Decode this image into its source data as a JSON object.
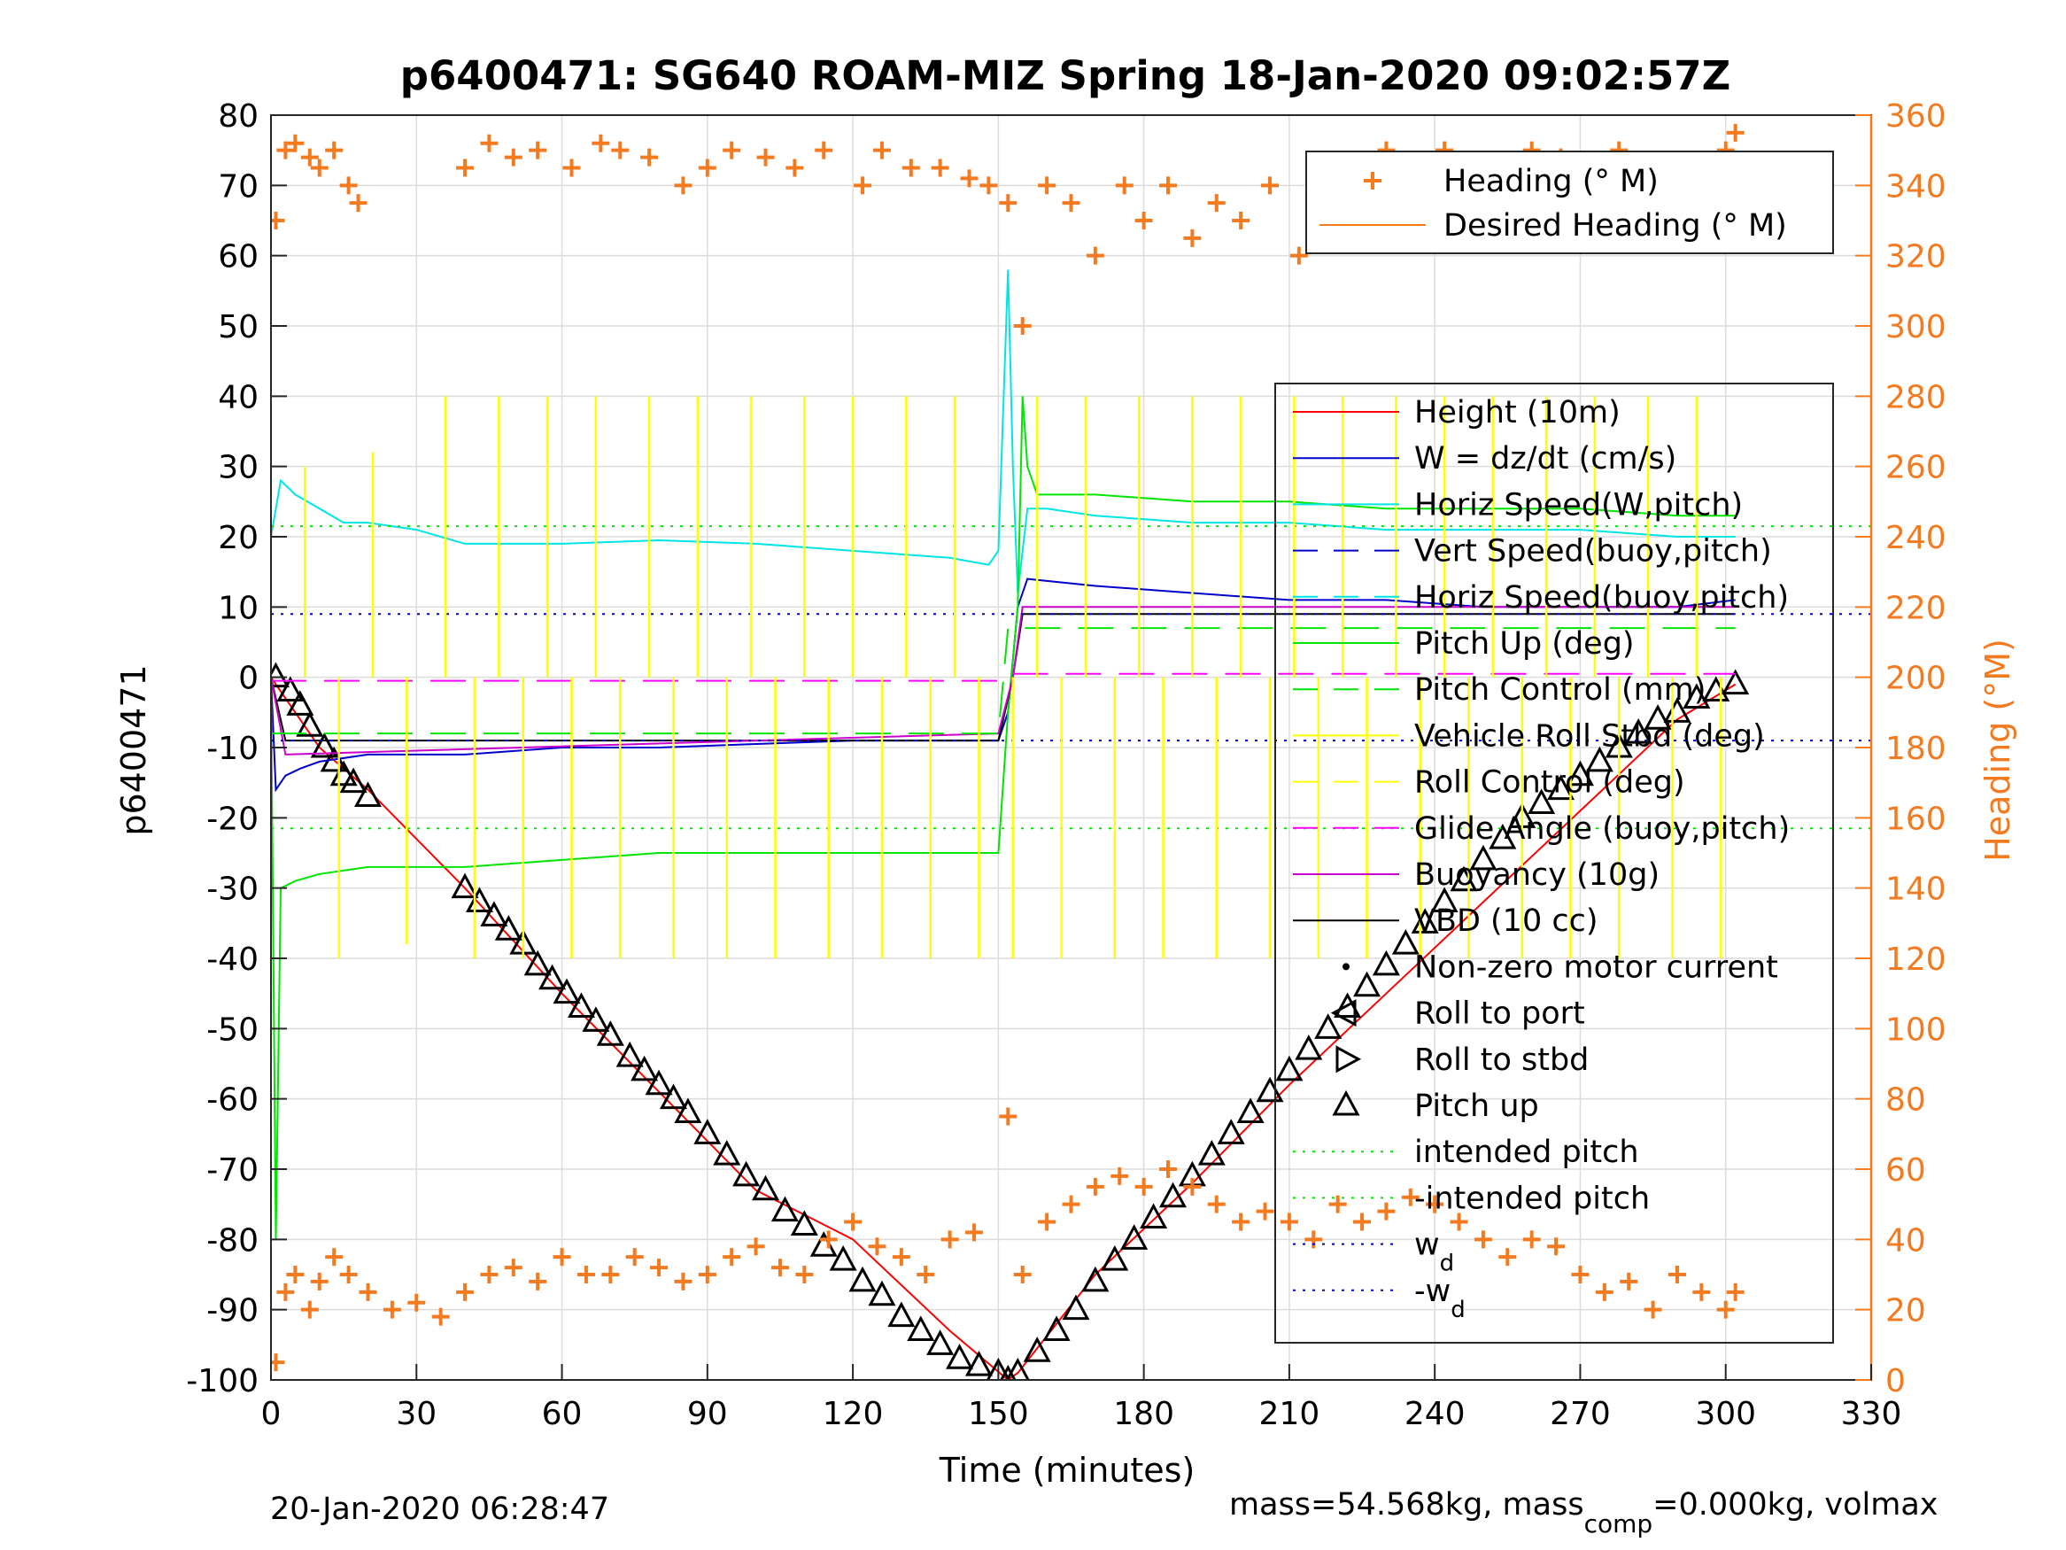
{
  "chart_data": {
    "type": "line",
    "title": "p6400471: SG640 ROAM-MIZ Spring 18-Jan-2020 09:02:57Z",
    "xlabel": "Time (minutes)",
    "ylabel_left": "p6400471",
    "ylabel_right": "Heading (°M)",
    "xlim": [
      0,
      330
    ],
    "ylim_left": [
      -100,
      80
    ],
    "ylim_right": [
      0,
      360
    ],
    "xticks": [
      0,
      30,
      60,
      90,
      120,
      150,
      180,
      210,
      240,
      270,
      300,
      330
    ],
    "yticks_left": [
      80,
      70,
      60,
      50,
      40,
      30,
      20,
      10,
      0,
      -10,
      -20,
      -30,
      -40,
      -50,
      -60,
      -70,
      -80,
      -90,
      -100
    ],
    "yticks_right": [
      360,
      340,
      320,
      300,
      280,
      260,
      240,
      220,
      200,
      180,
      160,
      140,
      120,
      100,
      80,
      60,
      40,
      20,
      0
    ],
    "grid": true,
    "footer_left": "20-Jan-2020 06:28:47",
    "footer_right": "mass=54.568kg, mass",
    "footer_right_sub": "comp",
    "footer_right_tail": "=0.000kg, volmax",
    "legend_heading": [
      {
        "label": "Heading (° M)",
        "color": "#f47a20",
        "style": "marker-plus"
      },
      {
        "label": "Desired Heading (° M)",
        "color": "#f47a20",
        "style": "solid"
      }
    ],
    "legend_main": [
      {
        "label": "Height (10m)",
        "color": "#ff0000",
        "style": "solid"
      },
      {
        "label": "W = dz/dt (cm/s)",
        "color": "#0000cc",
        "style": "solid"
      },
      {
        "label": "Horiz Speed(W,pitch)",
        "color": "#00e5e5",
        "style": "solid"
      },
      {
        "label": "Vert Speed(buoy,pitch)",
        "color": "#0000cc",
        "style": "dashed"
      },
      {
        "label": "Horiz Speed(buoy,pitch)",
        "color": "#00e5e5",
        "style": "dashed"
      },
      {
        "label": "Pitch Up (deg)",
        "color": "#00e600",
        "style": "solid"
      },
      {
        "label": "Pitch Control (mm)",
        "color": "#00e600",
        "style": "dashed"
      },
      {
        "label": "Vehicle Roll Stbd (deg)",
        "color": "#ffff00",
        "style": "solid"
      },
      {
        "label": "Roll Control (deg)",
        "color": "#ffff00",
        "style": "dashed"
      },
      {
        "label": "Glide Angle (buoy,pitch)",
        "color": "#ff00ff",
        "style": "dashed"
      },
      {
        "label": "Buoyancy (10g)",
        "color": "#cc00cc",
        "style": "solid"
      },
      {
        "label": "VBD (10 cc)",
        "color": "#000000",
        "style": "solid"
      },
      {
        "label": "Non-zero motor current",
        "color": "#000000",
        "style": "dot"
      },
      {
        "label": "Roll to port",
        "color": "#000000",
        "style": "tri-left"
      },
      {
        "label": "Roll to stbd",
        "color": "#000000",
        "style": "tri-right"
      },
      {
        "label": "Pitch up",
        "color": "#000000",
        "style": "tri-up"
      },
      {
        "label": "intended pitch",
        "color": "#00e600",
        "style": "dotted"
      },
      {
        "label": "-intended pitch",
        "color": "#00e600",
        "style": "dotted"
      },
      {
        "label": "w",
        "sub": "d",
        "color": "#0000cc",
        "style": "dotted"
      },
      {
        "label": "-w",
        "sub": "d",
        "color": "#0000cc",
        "style": "dotted"
      }
    ],
    "series": [
      {
        "name": "Height (10m)",
        "axis": "left",
        "color": "#ff0000",
        "x": [
          0,
          5,
          10,
          15,
          20,
          40,
          60,
          80,
          100,
          120,
          140,
          152,
          154,
          170,
          190,
          210,
          230,
          250,
          270,
          290,
          302
        ],
        "y": [
          0,
          -5,
          -10,
          -13,
          -16,
          -30,
          -45,
          -59,
          -73,
          -80,
          -93,
          -100,
          -99,
          -85,
          -72,
          -58,
          -45,
          -32,
          -19,
          -6,
          -1
        ]
      },
      {
        "name": "Pitch up markers",
        "axis": "left",
        "color": "#000000",
        "x": [
          1,
          4,
          6,
          8,
          11,
          13,
          15,
          17,
          20,
          40,
          43,
          46,
          49,
          52,
          55,
          58,
          61,
          64,
          67,
          70,
          74,
          77,
          80,
          83,
          86,
          90,
          94,
          98,
          102,
          106,
          110,
          114,
          118,
          122,
          126,
          130,
          134,
          138,
          142,
          146,
          150,
          152,
          154,
          158,
          162,
          166,
          170,
          174,
          178,
          182,
          186,
          190,
          194,
          198,
          202,
          206,
          210,
          214,
          218,
          222,
          226,
          230,
          234,
          238,
          242,
          246,
          250,
          254,
          258,
          262,
          266,
          270,
          274,
          278,
          282,
          286,
          290,
          294,
          298,
          302
        ],
        "y": [
          0,
          -2,
          -4,
          -7,
          -10,
          -12,
          -14,
          -15,
          -17,
          -30,
          -32,
          -34,
          -36,
          -38,
          -41,
          -43,
          -45,
          -47,
          -49,
          -51,
          -54,
          -56,
          -58,
          -60,
          -62,
          -65,
          -68,
          -71,
          -73,
          -76,
          -78,
          -81,
          -83,
          -86,
          -88,
          -91,
          -93,
          -95,
          -97,
          -98,
          -99,
          -100,
          -99,
          -96,
          -93,
          -90,
          -86,
          -83,
          -80,
          -77,
          -74,
          -71,
          -68,
          -65,
          -62,
          -59,
          -56,
          -53,
          -50,
          -47,
          -44,
          -41,
          -38,
          -35,
          -32,
          -29,
          -26,
          -23,
          -20,
          -18,
          -16,
          -14,
          -12,
          -10,
          -8,
          -6,
          -5,
          -3,
          -2,
          -1
        ]
      },
      {
        "name": "W = dz/dt (cm/s)",
        "axis": "left",
        "color": "#0000cc",
        "x": [
          0,
          1,
          3,
          6,
          10,
          20,
          40,
          60,
          80,
          100,
          120,
          140,
          150,
          152,
          154,
          156,
          170,
          190,
          210,
          230,
          250,
          270,
          290,
          302
        ],
        "y": [
          0,
          -16,
          -14,
          -13,
          -12,
          -11,
          -11,
          -10,
          -10,
          -9.5,
          -9,
          -9,
          -9,
          -5,
          10,
          14,
          13,
          12,
          11,
          11,
          10,
          10,
          10,
          11
        ]
      },
      {
        "name": "Horiz Speed(W,pitch)",
        "axis": "left",
        "color": "#00e5e5",
        "x": [
          0,
          2,
          5,
          10,
          15,
          20,
          30,
          40,
          60,
          80,
          100,
          120,
          140,
          148,
          150,
          152,
          153,
          154,
          156,
          160,
          170,
          190,
          210,
          230,
          250,
          270,
          290,
          302
        ],
        "y": [
          20,
          28,
          26,
          24,
          22,
          22,
          21,
          19,
          19,
          19.5,
          19,
          18,
          17,
          16,
          18,
          58,
          30,
          12,
          24,
          24,
          23,
          22,
          22,
          21,
          21,
          21,
          20,
          20
        ]
      },
      {
        "name": "Pitch Up (deg)",
        "axis": "left",
        "color": "#00e600",
        "x": [
          0,
          1,
          2,
          5,
          10,
          20,
          40,
          60,
          80,
          100,
          120,
          140,
          150,
          152,
          154,
          155,
          156,
          158,
          170,
          190,
          210,
          230,
          250,
          270,
          290,
          302
        ],
        "y": [
          0,
          -80,
          -30,
          -29,
          -28,
          -27,
          -27,
          -26,
          -25,
          -25,
          -25,
          -25,
          -25,
          -5,
          10,
          40,
          30,
          26,
          26,
          25,
          25,
          24,
          24,
          24,
          23,
          23
        ]
      },
      {
        "name": "VBD (10 cc)",
        "axis": "left",
        "color": "#000000",
        "x": [
          0,
          3,
          150,
          153,
          155,
          302
        ],
        "y": [
          0,
          -9,
          -9,
          0,
          9,
          9
        ]
      },
      {
        "name": "Buoyancy (10g)",
        "axis": "left",
        "color": "#cc00cc",
        "x": [
          0,
          3,
          150,
          153,
          155,
          302
        ],
        "y": [
          0,
          -11,
          -8,
          0,
          10,
          10
        ]
      },
      {
        "name": "Glide Angle (buoy,pitch)",
        "axis": "left",
        "color": "#ff00ff",
        "x": [
          0,
          150,
          152,
          302
        ],
        "y": [
          -0.5,
          -0.5,
          0.5,
          0.5
        ]
      },
      {
        "name": "Pitch Control (mm)",
        "axis": "left",
        "color": "#00e600",
        "x": [
          0,
          150,
          152,
          302
        ],
        "y": [
          -8,
          -8,
          7,
          7
        ]
      },
      {
        "name": "intended pitch",
        "axis": "left",
        "color": "#00e600",
        "x": [
          0,
          330
        ],
        "y": [
          21.5,
          21.5
        ]
      },
      {
        "name": "-intended pitch",
        "axis": "left",
        "color": "#00e600",
        "x": [
          0,
          330
        ],
        "y": [
          -21.5,
          -21.5
        ]
      },
      {
        "name": "w_d",
        "axis": "left",
        "color": "#0000cc",
        "x": [
          0,
          330
        ],
        "y": [
          9,
          9
        ]
      },
      {
        "name": "-w_d",
        "axis": "left",
        "color": "#0000cc",
        "x": [
          0,
          330
        ],
        "y": [
          -9,
          -9
        ]
      },
      {
        "name": "Vehicle Roll Stbd (deg) spikes",
        "axis": "left",
        "color": "#ffff00",
        "x": [
          7,
          14,
          21,
          28,
          36,
          42,
          47,
          52,
          57,
          62,
          67,
          72,
          78,
          83,
          88,
          94,
          99,
          104,
          110,
          115,
          120,
          126,
          131,
          136,
          141,
          146,
          153,
          158,
          163,
          168,
          174,
          179,
          184,
          190,
          195,
          200,
          206,
          211,
          216,
          221,
          226,
          232,
          237,
          242,
          247,
          252,
          258,
          263,
          268,
          273,
          278,
          284,
          289,
          294,
          299
        ],
        "y": [
          30,
          -40,
          32,
          -38,
          40,
          -40,
          40,
          -40,
          40,
          -40,
          40,
          -40,
          40,
          -40,
          40,
          -40,
          40,
          -40,
          40,
          -40,
          40,
          -40,
          40,
          -40,
          40,
          -40,
          -40,
          40,
          -40,
          40,
          -40,
          40,
          -40,
          40,
          -40,
          40,
          -40,
          40,
          -40,
          40,
          -40,
          40,
          -40,
          40,
          -40,
          40,
          -40,
          40,
          -40,
          40,
          -40,
          40,
          -40,
          40,
          -40
        ]
      },
      {
        "name": "Heading (° M)",
        "axis": "right",
        "color": "#f47a20",
        "marker": "plus",
        "x": [
          1,
          3,
          5,
          8,
          10,
          13,
          16,
          18,
          40,
          45,
          50,
          55,
          62,
          68,
          72,
          78,
          85,
          90,
          95,
          102,
          108,
          114,
          122,
          126,
          132,
          138,
          144,
          148,
          152,
          155,
          160,
          165,
          170,
          176,
          180,
          185,
          190,
          195,
          200,
          206,
          212,
          218,
          224,
          230,
          236,
          242,
          248,
          254,
          260,
          266,
          272,
          278,
          284,
          290,
          296,
          300,
          302
        ],
        "y": [
          330,
          350,
          352,
          348,
          345,
          350,
          340,
          335,
          345,
          352,
          348,
          350,
          345,
          352,
          350,
          348,
          340,
          345,
          350,
          348,
          345,
          350,
          340,
          350,
          345,
          345,
          342,
          340,
          335,
          300,
          340,
          335,
          320,
          340,
          330,
          340,
          325,
          335,
          330,
          340,
          320,
          345,
          340,
          350,
          345,
          350,
          340,
          345,
          350,
          348,
          345,
          350,
          340,
          330,
          345,
          350,
          355
        ]
      },
      {
        "name": "Heading (° M) low",
        "axis": "right",
        "color": "#f47a20",
        "marker": "plus",
        "x": [
          1,
          3,
          5,
          8,
          10,
          13,
          16,
          20,
          25,
          30,
          35,
          40,
          45,
          50,
          55,
          60,
          65,
          70,
          75,
          80,
          85,
          90,
          95,
          100,
          105,
          110,
          115,
          120,
          125,
          130,
          135,
          140,
          145,
          152,
          155,
          160,
          165,
          170,
          175,
          180,
          185,
          190,
          195,
          200,
          205,
          210,
          215,
          220,
          225,
          230,
          235,
          240,
          245,
          250,
          255,
          260,
          265,
          270,
          275,
          280,
          285,
          290,
          295,
          300,
          302
        ],
        "y": [
          5,
          25,
          30,
          20,
          28,
          35,
          30,
          25,
          20,
          22,
          18,
          25,
          30,
          32,
          28,
          35,
          30,
          30,
          35,
          32,
          28,
          30,
          35,
          38,
          32,
          30,
          40,
          45,
          38,
          35,
          30,
          40,
          42,
          75,
          30,
          45,
          50,
          55,
          58,
          55,
          60,
          55,
          50,
          45,
          48,
          45,
          40,
          50,
          45,
          48,
          52,
          50,
          45,
          40,
          35,
          40,
          38,
          30,
          25,
          28,
          20,
          30,
          25,
          20,
          25
        ]
      }
    ]
  }
}
